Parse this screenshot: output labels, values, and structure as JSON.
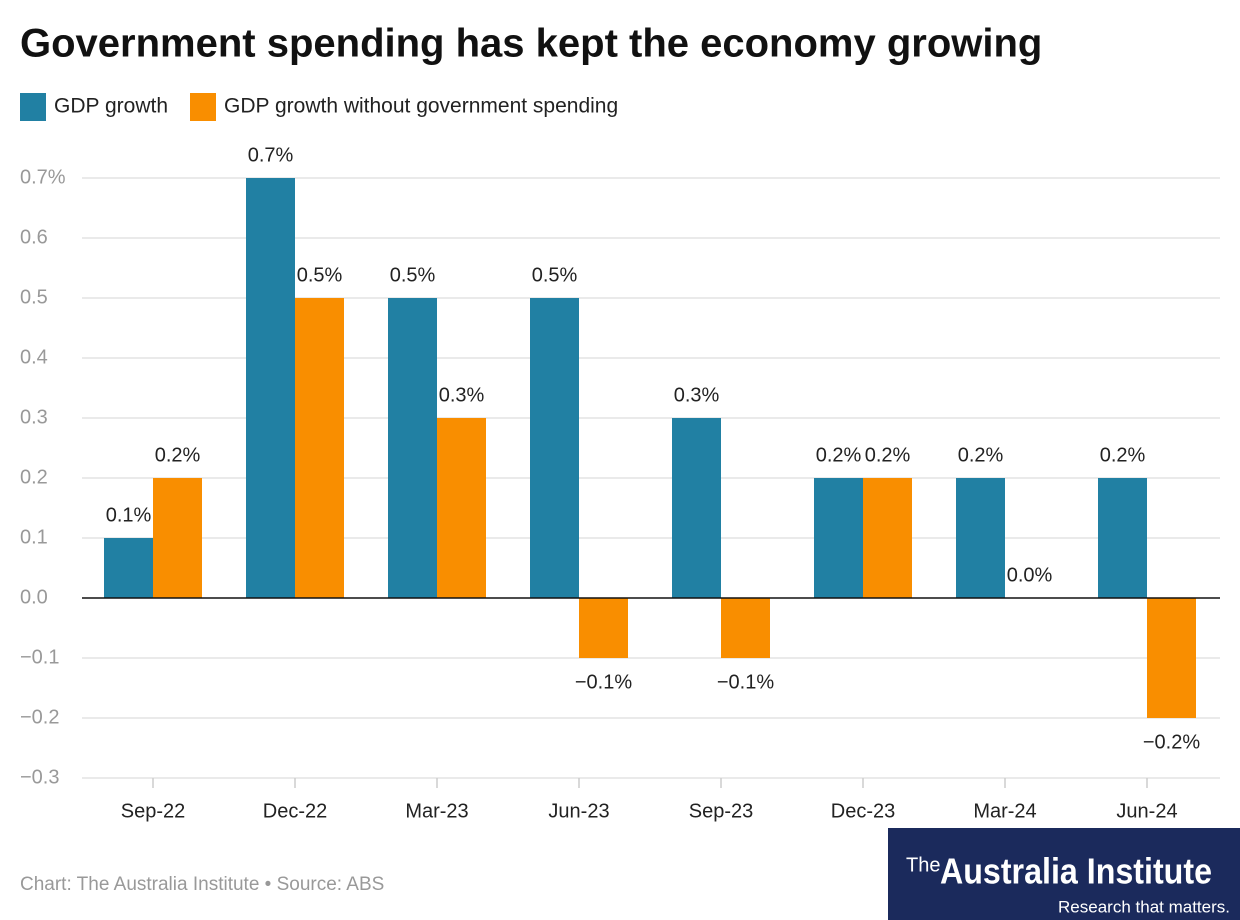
{
  "chart_data": {
    "type": "bar",
    "title": "Government spending has kept the economy growing",
    "categories": [
      "Sep-22",
      "Dec-22",
      "Mar-23",
      "Jun-23",
      "Sep-23",
      "Dec-23",
      "Mar-24",
      "Jun-24"
    ],
    "series": [
      {
        "name": "GDP growth",
        "color": "#2180a3",
        "values": [
          0.1,
          0.7,
          0.5,
          0.5,
          0.3,
          0.2,
          0.2,
          0.2
        ],
        "value_labels": [
          "0.1%",
          "0.7%",
          "0.5%",
          "0.5%",
          "0.3%",
          "0.2%",
          "0.2%",
          "0.2%"
        ]
      },
      {
        "name": "GDP growth without government spending",
        "color": "#f98e00",
        "values": [
          0.2,
          0.5,
          0.3,
          -0.1,
          -0.1,
          0.2,
          0.0,
          -0.2
        ],
        "value_labels": [
          "0.2%",
          "0.5%",
          "0.3%",
          "−0.1%",
          "−0.1%",
          "0.2%",
          "0.0%",
          "−0.2%"
        ]
      }
    ],
    "ylim": [
      -0.3,
      0.7
    ],
    "yticks": [
      {
        "value": 0.7,
        "label": "0.7%"
      },
      0.6,
      0.5,
      0.4,
      0.3,
      0.2,
      0.1,
      {
        "value": 0,
        "label": "0.0"
      },
      {
        "value": -0.1,
        "label": "−0.1"
      },
      {
        "value": -0.2,
        "label": "−0.2"
      },
      {
        "value": -0.3,
        "label": "−0.3"
      }
    ],
    "grid": true,
    "legend": "top-left"
  },
  "footer": {
    "source": "Chart: The Australia Institute • Source: ABS",
    "logo_prefix": "The",
    "logo_name": "Australia Institute",
    "logo_tagline": "Research that matters."
  }
}
